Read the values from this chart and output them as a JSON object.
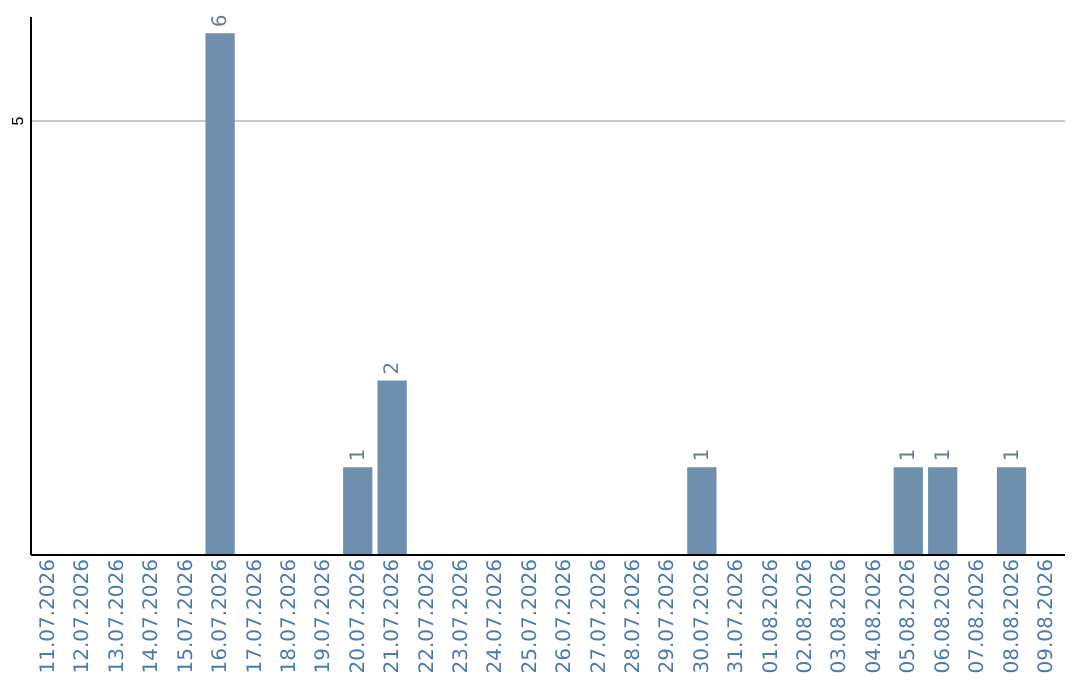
{
  "chart_data": {
    "type": "bar",
    "categories": [
      "11.07.2026",
      "12.07.2026",
      "13.07.2026",
      "14.07.2026",
      "15.07.2026",
      "16.07.2026",
      "17.07.2026",
      "18.07.2026",
      "19.07.2026",
      "20.07.2026",
      "21.07.2026",
      "22.07.2026",
      "23.07.2026",
      "24.07.2026",
      "25.07.2026",
      "26.07.2026",
      "27.07.2026",
      "28.07.2026",
      "29.07.2026",
      "30.07.2026",
      "31.07.2026",
      "01.08.2026",
      "02.08.2026",
      "03.08.2026",
      "04.08.2026",
      "05.08.2026",
      "06.08.2026",
      "07.08.2026",
      "08.08.2026",
      "09.08.2026"
    ],
    "values": [
      0,
      0,
      0,
      0,
      0,
      6,
      0,
      0,
      0,
      1,
      2,
      0,
      0,
      0,
      0,
      0,
      0,
      0,
      0,
      1,
      0,
      0,
      0,
      0,
      0,
      1,
      1,
      0,
      1,
      0
    ],
    "value_labels": [
      null,
      null,
      null,
      null,
      null,
      "6",
      null,
      null,
      null,
      "1",
      "2",
      null,
      null,
      null,
      null,
      null,
      null,
      null,
      null,
      "1",
      null,
      null,
      null,
      null,
      null,
      "1",
      "1",
      null,
      "1",
      null
    ],
    "color": "#6f8fae",
    "ylim": [
      0,
      6.2
    ],
    "yticks": [
      5
    ],
    "grid": "y"
  }
}
